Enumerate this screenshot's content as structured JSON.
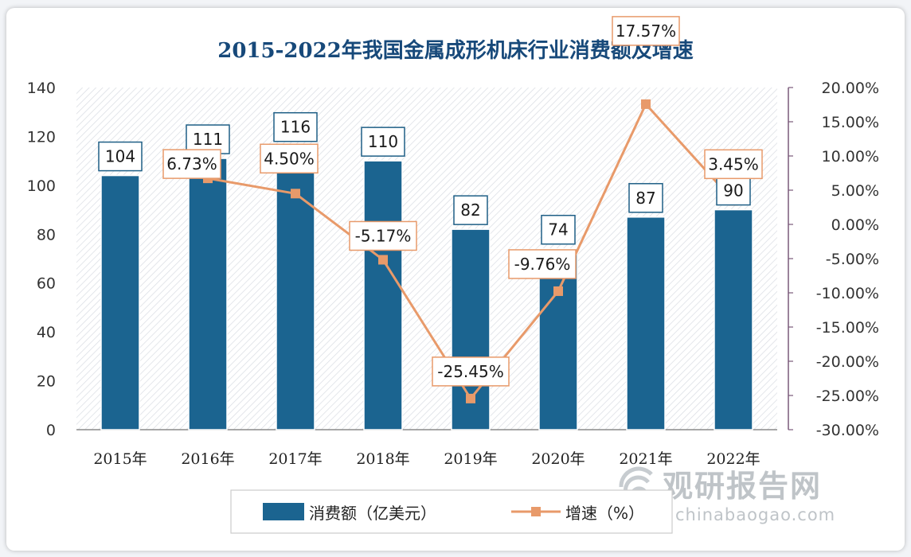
{
  "chart_data": {
    "type": "bar",
    "title": "2015-2022年我国金属成形机床行业消费额及增速",
    "categories": [
      "2015年",
      "2016年",
      "2017年",
      "2018年",
      "2019年",
      "2020年",
      "2021年",
      "2022年"
    ],
    "series": [
      {
        "name": "消费额（亿美元）",
        "type": "bar",
        "axis": "left",
        "values": [
          104,
          111,
          116,
          110,
          82,
          74,
          87,
          90
        ],
        "labels": [
          "104",
          "111",
          "116",
          "110",
          "82",
          "74",
          "87",
          "90"
        ]
      },
      {
        "name": "增速（%）",
        "type": "line",
        "axis": "right",
        "values": [
          null,
          6.73,
          4.5,
          -5.17,
          -25.45,
          -9.76,
          17.57,
          3.45
        ],
        "labels": [
          "",
          "6.73%",
          "4.50%",
          "-5.17%",
          "-25.45%",
          "-9.76%",
          "17.57%",
          "3.45%"
        ]
      }
    ],
    "y_left": {
      "min": 0,
      "max": 140,
      "ticks": [
        "0",
        "20",
        "40",
        "60",
        "80",
        "100",
        "120",
        "140"
      ]
    },
    "y_right": {
      "min": -30,
      "max": 20,
      "ticks": [
        "-30.00%",
        "-25.00%",
        "-20.00%",
        "-15.00%",
        "-10.00%",
        "-5.00%",
        "0.00%",
        "5.00%",
        "10.00%",
        "15.00%",
        "20.00%"
      ]
    },
    "legend_placement": "bottom-center",
    "colors": {
      "bar": "#1b6490",
      "line": "#e89a6a",
      "title": "#17497a",
      "grid_hatch": "#d4d8de"
    }
  },
  "watermark": {
    "cn": "观研报告网",
    "en": "chinabaogao.com"
  }
}
